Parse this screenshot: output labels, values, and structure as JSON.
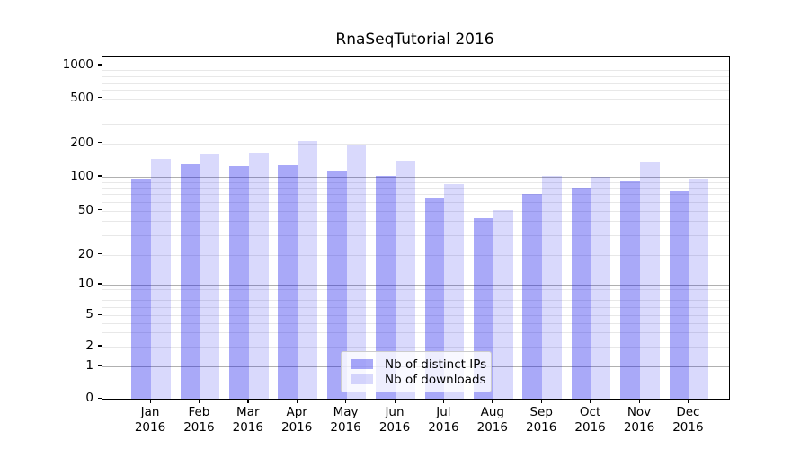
{
  "chart_data": {
    "type": "bar",
    "title": "RnaSeqTutorial 2016",
    "categories": [
      "Jan 2016",
      "Feb 2016",
      "Mar 2016",
      "Apr 2016",
      "May 2016",
      "Jun 2016",
      "Jul 2016",
      "Aug 2016",
      "Sep 2016",
      "Oct 2016",
      "Nov 2016",
      "Dec 2016"
    ],
    "series": [
      {
        "name": "Nb of distinct IPs",
        "color": "rgba(2,2,235,0.34)",
        "values": [
          97,
          129,
          124,
          127,
          113,
          102,
          64,
          43,
          70,
          80,
          91,
          74
        ]
      },
      {
        "name": "Nb of downloads",
        "color": "rgba(2,2,235,0.15)",
        "values": [
          145,
          162,
          165,
          210,
          190,
          140,
          86,
          51,
          102,
          100,
          136,
          97
        ]
      }
    ],
    "xlabel": "",
    "ylabel": "",
    "yscale": "symlog",
    "yticks": [
      0,
      1,
      2,
      5,
      10,
      20,
      50,
      100,
      200,
      500,
      1000
    ],
    "ylim": [
      0,
      1200
    ],
    "grid": true,
    "legend_position": "lower center",
    "colors": {
      "bar_dark": "rgba(2,2,235,0.34)",
      "bar_light": "rgba(2,2,235,0.15)",
      "grid_major": "#b0b0b0",
      "grid_minor": "#e8e8e8",
      "axis": "#000000"
    }
  }
}
